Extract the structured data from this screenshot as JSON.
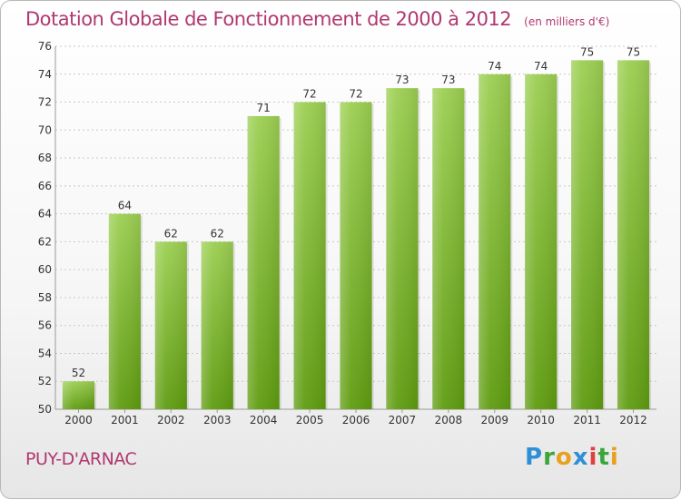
{
  "header": {
    "title": "Dotation Globale de Fonctionnement de 2000 à 2012",
    "unit": "(en milliers d'€)"
  },
  "footer": {
    "town": "PUY-D'ARNAC",
    "logo": [
      "P",
      "r",
      "o",
      "x",
      "i",
      "t",
      "i"
    ]
  },
  "colors": {
    "bar_top": "#9ccf52",
    "bar_bottom": "#5f9c10",
    "title": "#b03870",
    "grid": "#c8c8c8"
  },
  "chart_data": {
    "type": "bar",
    "title": "Dotation Globale de Fonctionnement de 2000 à 2012",
    "xlabel": "",
    "ylabel": "",
    "ylim": [
      50,
      76
    ],
    "yticks": [
      50,
      52,
      54,
      56,
      58,
      60,
      62,
      64,
      66,
      68,
      70,
      72,
      74,
      76
    ],
    "grid": true,
    "categories": [
      "2000",
      "2001",
      "2002",
      "2003",
      "2004",
      "2005",
      "2006",
      "2007",
      "2008",
      "2009",
      "2010",
      "2011",
      "2012"
    ],
    "values": [
      52,
      64,
      62,
      62,
      71,
      72,
      72,
      73,
      73,
      74,
      74,
      75,
      75
    ]
  }
}
